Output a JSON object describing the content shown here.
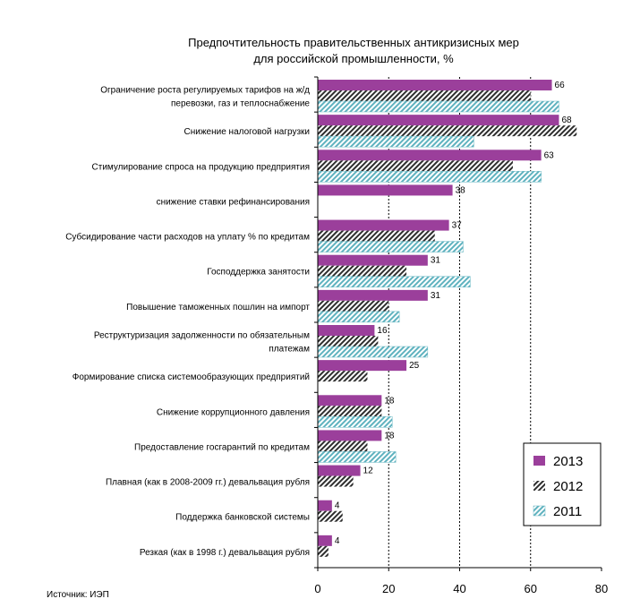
{
  "chart_data": {
    "type": "bar",
    "orientation": "horizontal",
    "title": [
      "Предпочтительность правительственных антикризисных мер",
      "для российской промышленности, %"
    ],
    "source": "Источник: ИЭП",
    "categories": [
      [
        "Ограничение роста регулируемых тарифов на ж/д",
        "перевозки, газ и теплоснабжение"
      ],
      [
        "Снижение налоговой нагрузки"
      ],
      [
        "Стимулирование спроса на продукцию предприятия"
      ],
      [
        "снижение ставки рефинансирования"
      ],
      [
        "Субсидирование части расходов на уплату % по кредитам"
      ],
      [
        "Господдержка занятости"
      ],
      [
        "Повышение таможенных пошлин на импорт"
      ],
      [
        "Реструктуризация задолженности  по обязательным",
        "платежам"
      ],
      [
        "Формирование списка системообразующих предприятий"
      ],
      [
        "Снижение коррупционного давления"
      ],
      [
        "Предоставление госгарантий по кредитам"
      ],
      [
        "Плавная (как в 2008-2009 гг.) девальвация рубля"
      ],
      [
        "Поддержка банковской системы"
      ],
      [
        "Резкая (как в 1998 г.) девальвация рубля"
      ]
    ],
    "series": [
      {
        "name": "2013",
        "values": [
          66,
          68,
          63,
          38,
          37,
          31,
          31,
          16,
          25,
          18,
          18,
          12,
          4,
          4
        ],
        "show_labels": true
      },
      {
        "name": "2012",
        "values": [
          60,
          73,
          55,
          null,
          33,
          25,
          20,
          17,
          14,
          18,
          14,
          10,
          7,
          3
        ],
        "show_labels": false
      },
      {
        "name": "2011",
        "values": [
          68,
          44,
          63,
          null,
          41,
          43,
          23,
          31,
          null,
          21,
          22,
          null,
          null,
          null
        ],
        "show_labels": false
      }
    ],
    "xlim": [
      0,
      80
    ],
    "xticks": [
      "0",
      "20",
      "40",
      "60",
      "80"
    ],
    "gridlines_at": [
      20,
      40,
      60
    ],
    "grid_style": "dashed",
    "legend_position": "bottom-right",
    "colors": {
      "2013": "#9b3f9b",
      "2012": "#3a3a3a",
      "2011": "#6ab8c4"
    }
  }
}
